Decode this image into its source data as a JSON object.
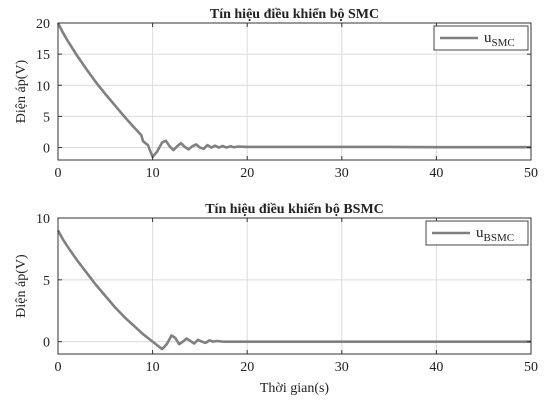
{
  "chart_data": [
    {
      "type": "line",
      "title": "Tín hiệu điều khiển bộ SMC",
      "xlabel": "",
      "ylabel": "Điện áp(V)",
      "xlim": [
        0,
        50
      ],
      "ylim": [
        -2,
        20
      ],
      "xticks": [
        "0",
        "10",
        "20",
        "30",
        "40",
        "50"
      ],
      "yticks": [
        "0",
        "5",
        "10",
        "15",
        "20"
      ],
      "grid": true,
      "legend_position": "top-right",
      "series": [
        {
          "name": "u",
          "name_subscript": "SMC",
          "color": "#808080",
          "points": [
            [
              0,
              20
            ],
            [
              0.5,
              18.5
            ],
            [
              1,
              17.2
            ],
            [
              2,
              14.8
            ],
            [
              3,
              12.6
            ],
            [
              4,
              10.5
            ],
            [
              5,
              8.6
            ],
            [
              6,
              6.8
            ],
            [
              7,
              5.0
            ],
            [
              8,
              3.3
            ],
            [
              8.8,
              2.0
            ],
            [
              9,
              1.0
            ],
            [
              9.5,
              0.4
            ],
            [
              10,
              -1.5
            ],
            [
              10.5,
              -0.6
            ],
            [
              11,
              0.8
            ],
            [
              11.4,
              1.1
            ],
            [
              11.8,
              0.2
            ],
            [
              12.2,
              -0.4
            ],
            [
              12.6,
              0.2
            ],
            [
              13,
              0.7
            ],
            [
              13.4,
              0.1
            ],
            [
              13.8,
              -0.3
            ],
            [
              14.2,
              0.2
            ],
            [
              14.6,
              0.5
            ],
            [
              15,
              0.0
            ],
            [
              15.4,
              -0.2
            ],
            [
              15.8,
              0.4
            ],
            [
              16.2,
              0.0
            ],
            [
              16.6,
              0.3
            ],
            [
              17,
              0.0
            ],
            [
              17.4,
              0.25
            ],
            [
              17.8,
              0.0
            ],
            [
              18.2,
              0.2
            ],
            [
              18.6,
              0.05
            ],
            [
              19,
              0.15
            ],
            [
              20,
              0.1
            ],
            [
              25,
              0.1
            ],
            [
              30,
              0.1
            ],
            [
              35,
              0.1
            ],
            [
              40,
              0.05
            ],
            [
              45,
              0.05
            ],
            [
              50,
              0.05
            ]
          ]
        }
      ]
    },
    {
      "type": "line",
      "title": "Tín hiệu điều khiển bộ BSMC",
      "xlabel": "Thời gian(s)",
      "ylabel": "Điện áp(V)",
      "xlim": [
        0,
        50
      ],
      "ylim": [
        -1,
        10
      ],
      "xticks": [
        "0",
        "10",
        "20",
        "30",
        "40",
        "50"
      ],
      "yticks": [
        "0",
        "5",
        "10"
      ],
      "grid": true,
      "legend_position": "top-right",
      "series": [
        {
          "name": "u",
          "name_subscript": "BSMC",
          "color": "#808080",
          "points": [
            [
              0,
              9
            ],
            [
              0.5,
              8.3
            ],
            [
              1,
              7.7
            ],
            [
              2,
              6.6
            ],
            [
              3,
              5.6
            ],
            [
              4,
              4.6
            ],
            [
              5,
              3.7
            ],
            [
              6,
              2.8
            ],
            [
              7,
              2.0
            ],
            [
              8,
              1.3
            ],
            [
              9,
              0.6
            ],
            [
              10,
              0.0
            ],
            [
              10.5,
              -0.3
            ],
            [
              11,
              -0.6
            ],
            [
              11.5,
              -0.2
            ],
            [
              12,
              0.5
            ],
            [
              12.4,
              0.3
            ],
            [
              12.8,
              -0.2
            ],
            [
              13.2,
              0.0
            ],
            [
              13.6,
              0.25
            ],
            [
              14,
              0.05
            ],
            [
              14.4,
              -0.15
            ],
            [
              14.8,
              0.15
            ],
            [
              15.2,
              0.0
            ],
            [
              15.6,
              -0.1
            ],
            [
              16,
              0.1
            ],
            [
              16.4,
              0.0
            ],
            [
              16.8,
              0.05
            ],
            [
              17.5,
              0.0
            ],
            [
              20,
              0.0
            ],
            [
              30,
              0.0
            ],
            [
              40,
              0.0
            ],
            [
              50,
              0.0
            ]
          ]
        }
      ]
    }
  ]
}
